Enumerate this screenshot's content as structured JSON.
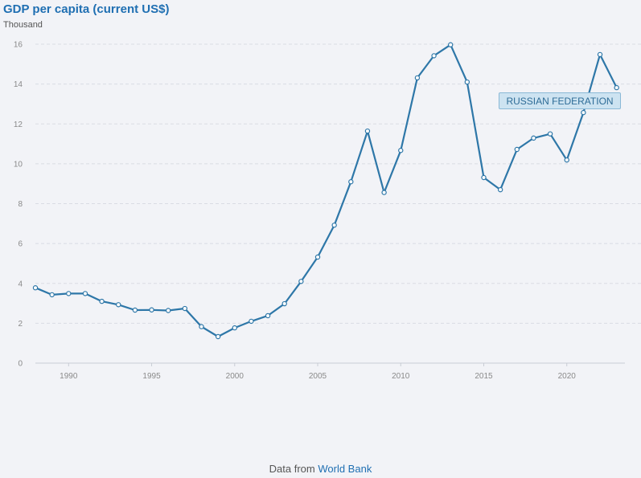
{
  "chart_data": {
    "type": "line",
    "title": "GDP per capita (current US$)",
    "unit_label": "Thousand",
    "xlim": [
      1988,
      2023.5
    ],
    "ylim": [
      0,
      16
    ],
    "y_ticks": [
      0,
      2,
      4,
      6,
      8,
      10,
      12,
      14,
      16
    ],
    "x_ticks": [
      1990,
      1995,
      2000,
      2005,
      2010,
      2015,
      2020
    ],
    "grid": "horizontal dashed",
    "series": [
      {
        "name": "RUSSIAN FEDERATION",
        "color": "#2e77a8",
        "x": [
          1988,
          1989,
          1990,
          1991,
          1992,
          1993,
          1994,
          1995,
          1996,
          1997,
          1998,
          1999,
          2000,
          2001,
          2002,
          2003,
          2004,
          2005,
          2006,
          2007,
          2008,
          2009,
          2010,
          2011,
          2012,
          2013,
          2014,
          2015,
          2016,
          2017,
          2018,
          2019,
          2020,
          2021,
          2022,
          2023
        ],
        "y": [
          3.78,
          3.43,
          3.49,
          3.49,
          3.1,
          2.93,
          2.66,
          2.67,
          2.64,
          2.74,
          1.83,
          1.33,
          1.77,
          2.1,
          2.38,
          2.98,
          4.1,
          5.32,
          6.92,
          9.1,
          11.64,
          8.56,
          10.67,
          14.31,
          15.42,
          15.97,
          14.1,
          9.31,
          8.7,
          10.72,
          11.29,
          11.5,
          10.19,
          12.57,
          15.48,
          13.82
        ]
      }
    ]
  },
  "footer": {
    "prefix": "Data from",
    "source": "World Bank"
  }
}
